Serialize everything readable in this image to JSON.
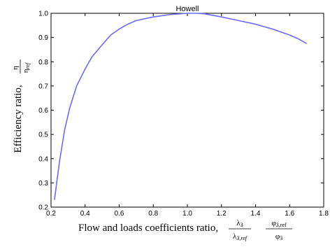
{
  "chart_data": {
    "type": "line",
    "title": "Howell",
    "xlim": [
      0.2,
      1.8
    ],
    "ylim": [
      0.2,
      1.0
    ],
    "x_ticks": [
      0.2,
      0.4,
      0.6,
      0.8,
      1.0,
      1.2,
      1.4,
      1.6,
      1.8
    ],
    "x_tick_labels": [
      "0.2",
      "0.4",
      "0.6",
      "0.8",
      "1.0",
      "1.2",
      "1.4",
      "1.6",
      "1.8"
    ],
    "y_ticks": [
      0.2,
      0.3,
      0.4,
      0.5,
      0.6,
      0.7,
      0.8,
      0.9,
      1.0
    ],
    "y_tick_labels": [
      "0.2",
      "0.3",
      "0.4",
      "0.5",
      "0.6",
      "0.7",
      "0.8",
      "0.9",
      "1.0"
    ],
    "xlabel": {
      "prefix": "Flow and loads coefficients ratio, ",
      "frac1_num": "λ",
      "frac1_num_sub": "3",
      "frac1_den": "λ",
      "frac1_den_sub": "3,ref",
      "frac2_num": "φ",
      "frac2_num_sub": "3,ref",
      "frac2_den": "φ",
      "frac2_den_sub": "3"
    },
    "ylabel": {
      "prefix": "Efficiency ratio, ",
      "frac_num": "η",
      "frac_den": "η",
      "frac_den_sub": "ref"
    },
    "grid": false,
    "series": [
      {
        "color": "#6a6aff",
        "x": [
          0.22,
          0.25,
          0.28,
          0.31,
          0.35,
          0.4,
          0.44,
          0.5,
          0.55,
          0.6,
          0.65,
          0.7,
          0.8,
          0.9,
          1.0,
          1.05,
          1.1,
          1.2,
          1.3,
          1.4,
          1.5,
          1.6,
          1.65,
          1.7
        ],
        "y": [
          0.23,
          0.39,
          0.52,
          0.61,
          0.7,
          0.77,
          0.82,
          0.87,
          0.91,
          0.935,
          0.955,
          0.97,
          0.985,
          0.995,
          1.0,
          1.0,
          0.998,
          0.985,
          0.97,
          0.955,
          0.935,
          0.91,
          0.895,
          0.875
        ]
      }
    ]
  }
}
